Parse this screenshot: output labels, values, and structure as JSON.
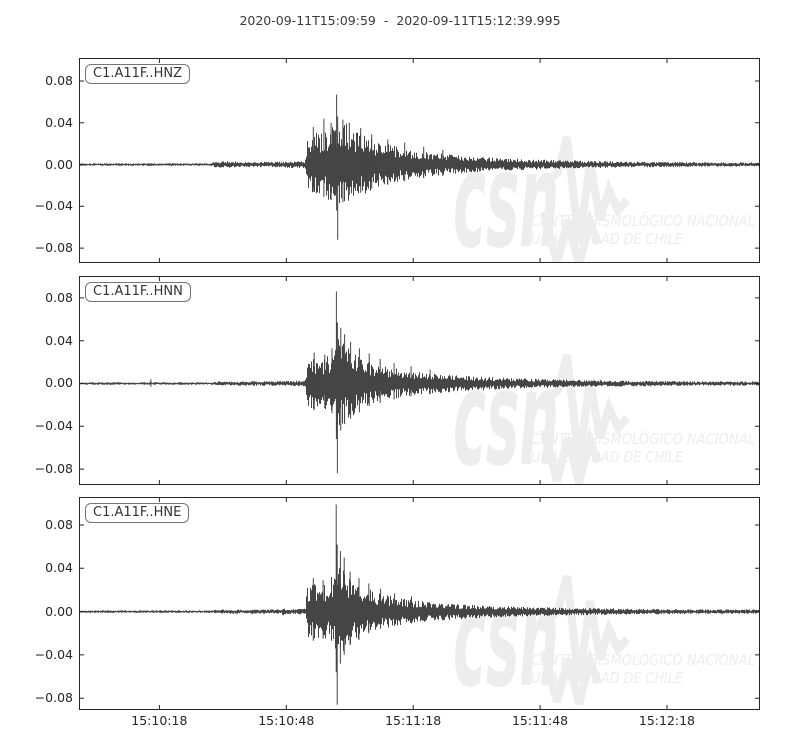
{
  "figure": {
    "title": "2020-09-11T15:09:59  -  2020-09-11T15:12:39.995",
    "background": "#ffffff",
    "trace_color": "#454545",
    "axis_color": "#262626",
    "label_text_color": "#333333",
    "watermark": {
      "big_text": "csn",
      "line1": "CENTRO SISMOLÓGICO NACIONAL",
      "line2": "UNIVERSIDAD DE CHILE",
      "color": "#ededed"
    }
  },
  "chart_data": {
    "type": "line",
    "title": "2020-09-11T15:09:59  -  2020-09-11T15:12:39.995",
    "xlabel": "",
    "ylabel": "",
    "grid": false,
    "legend_position": "none",
    "x_axis": {
      "start_time": "15:09:59",
      "end_time": "15:12:39.995",
      "duration_s": 160.995,
      "ticks": [
        {
          "t": 19,
          "label": "15:10:18"
        },
        {
          "t": 49,
          "label": "15:10:48"
        },
        {
          "t": 79,
          "label": "15:11:18"
        },
        {
          "t": 109,
          "label": "15:11:48"
        },
        {
          "t": 139,
          "label": "15:12:18"
        }
      ]
    },
    "panels": [
      {
        "label": "C1.A11F..HNZ",
        "seed": 101,
        "ylim": [
          -0.0943,
          0.102
        ],
        "yticks": [
          0.08,
          0.04,
          0.0,
          -0.04,
          -0.08
        ],
        "envelope": [
          [
            0,
            0.0013
          ],
          [
            31,
            0.0013
          ],
          [
            32,
            0.0028
          ],
          [
            36,
            0.0032
          ],
          [
            40,
            0.0025
          ],
          [
            46,
            0.0028
          ],
          [
            50,
            0.0033
          ],
          [
            53.4,
            0.0035
          ],
          [
            53.8,
            0.028
          ],
          [
            55.5,
            0.034
          ],
          [
            57,
            0.029
          ],
          [
            59,
            0.035
          ],
          [
            60.9,
            0.046
          ],
          [
            61.5,
            0.04
          ],
          [
            62.5,
            0.044
          ],
          [
            64,
            0.036
          ],
          [
            66,
            0.031
          ],
          [
            68,
            0.028
          ],
          [
            70,
            0.024
          ],
          [
            73,
            0.02
          ],
          [
            76,
            0.016
          ],
          [
            80,
            0.013
          ],
          [
            84,
            0.011
          ],
          [
            89,
            0.009
          ],
          [
            95,
            0.0072
          ],
          [
            102,
            0.0058
          ],
          [
            110,
            0.0046
          ],
          [
            119,
            0.0037
          ],
          [
            128,
            0.003
          ],
          [
            138,
            0.0025
          ],
          [
            148,
            0.0021
          ],
          [
            161,
            0.002
          ]
        ],
        "spikes": [
          [
            55.4,
            0.036,
            -0.026
          ],
          [
            57.9,
            0.044,
            -0.031
          ],
          [
            59.6,
            0.04,
            -0.034
          ],
          [
            60.9,
            0.067,
            -0.044
          ],
          [
            61.15,
            0.046,
            -0.072
          ],
          [
            62.4,
            0.043,
            -0.036
          ],
          [
            63.9,
            0.04,
            -0.029
          ],
          [
            66.6,
            0.035,
            -0.027
          ],
          [
            69.2,
            0.029,
            -0.023
          ],
          [
            73,
            0.024,
            -0.019
          ],
          [
            77,
            0.021,
            -0.016
          ],
          [
            81.5,
            0.017,
            -0.013
          ],
          [
            86,
            0.014,
            -0.011
          ]
        ]
      },
      {
        "label": "C1.A11F..HNN",
        "seed": 202,
        "ylim": [
          -0.0949,
          0.1005
        ],
        "yticks": [
          0.08,
          0.04,
          0.0,
          -0.04,
          -0.08
        ],
        "envelope": [
          [
            0,
            0.0012
          ],
          [
            31,
            0.0012
          ],
          [
            33,
            0.002
          ],
          [
            45,
            0.0022
          ],
          [
            52,
            0.0026
          ],
          [
            53.4,
            0.003
          ],
          [
            53.8,
            0.021
          ],
          [
            55.5,
            0.026
          ],
          [
            57.5,
            0.023
          ],
          [
            59.5,
            0.028
          ],
          [
            60.9,
            0.04
          ],
          [
            61.6,
            0.046
          ],
          [
            62.5,
            0.038
          ],
          [
            64,
            0.032
          ],
          [
            66,
            0.027
          ],
          [
            68,
            0.023
          ],
          [
            70,
            0.019
          ],
          [
            73,
            0.016
          ],
          [
            76,
            0.013
          ],
          [
            80,
            0.011
          ],
          [
            85,
            0.009
          ],
          [
            91,
            0.0072
          ],
          [
            98,
            0.0058
          ],
          [
            106,
            0.0046
          ],
          [
            115,
            0.0037
          ],
          [
            125,
            0.003
          ],
          [
            136,
            0.0025
          ],
          [
            147,
            0.0021
          ],
          [
            161,
            0.002
          ]
        ],
        "spikes": [
          [
            17,
            0.004,
            -0.003
          ],
          [
            55.6,
            0.029,
            -0.025
          ],
          [
            58.1,
            0.027,
            -0.023
          ],
          [
            59.8,
            0.033,
            -0.028
          ],
          [
            60.85,
            0.086,
            -0.052
          ],
          [
            61.1,
            0.057,
            -0.084
          ],
          [
            61.9,
            0.052,
            -0.044
          ],
          [
            62.8,
            0.046,
            -0.038
          ],
          [
            64.2,
            0.039,
            -0.033
          ],
          [
            66.3,
            0.033,
            -0.027
          ],
          [
            68.6,
            0.028,
            -0.021
          ],
          [
            71.2,
            0.023,
            -0.018
          ],
          [
            74.5,
            0.019,
            -0.015
          ],
          [
            78.5,
            0.016,
            -0.012
          ],
          [
            83,
            0.013,
            -0.01
          ]
        ]
      },
      {
        "label": "C1.A11F..HNE",
        "seed": 303,
        "ylim": [
          -0.0909,
          0.1059
        ],
        "yticks": [
          0.08,
          0.04,
          0.0,
          -0.04,
          -0.08
        ],
        "envelope": [
          [
            0,
            0.0012
          ],
          [
            31,
            0.0012
          ],
          [
            33,
            0.002
          ],
          [
            47.8,
            0.002
          ],
          [
            48.3,
            0.0045
          ],
          [
            49,
            0.002
          ],
          [
            53.4,
            0.0028
          ],
          [
            53.8,
            0.023
          ],
          [
            55.5,
            0.027
          ],
          [
            57.5,
            0.024
          ],
          [
            59.5,
            0.027
          ],
          [
            60.9,
            0.042
          ],
          [
            61.6,
            0.045
          ],
          [
            62.6,
            0.037
          ],
          [
            64,
            0.031
          ],
          [
            66,
            0.026
          ],
          [
            68,
            0.022
          ],
          [
            70,
            0.018
          ],
          [
            73,
            0.015
          ],
          [
            76,
            0.0125
          ],
          [
            80,
            0.0105
          ],
          [
            85,
            0.0085
          ],
          [
            91,
            0.0068
          ],
          [
            98,
            0.0055
          ],
          [
            106,
            0.0044
          ],
          [
            115,
            0.0036
          ],
          [
            125,
            0.003
          ],
          [
            136,
            0.0025
          ],
          [
            147,
            0.0021
          ],
          [
            161,
            0.002
          ]
        ],
        "spikes": [
          [
            55.4,
            0.031,
            -0.027
          ],
          [
            57.7,
            0.029,
            -0.025
          ],
          [
            59.7,
            0.032,
            -0.027
          ],
          [
            60.8,
            0.099,
            -0.056
          ],
          [
            61.05,
            0.062,
            -0.086
          ],
          [
            61.8,
            0.056,
            -0.048
          ],
          [
            62.7,
            0.05,
            -0.04
          ],
          [
            64.1,
            0.037,
            -0.031
          ],
          [
            66.2,
            0.031,
            -0.026
          ],
          [
            68.5,
            0.026,
            -0.02
          ],
          [
            71.3,
            0.021,
            -0.016
          ],
          [
            74.6,
            0.017,
            -0.013
          ],
          [
            78.6,
            0.014,
            -0.011
          ]
        ]
      }
    ]
  }
}
